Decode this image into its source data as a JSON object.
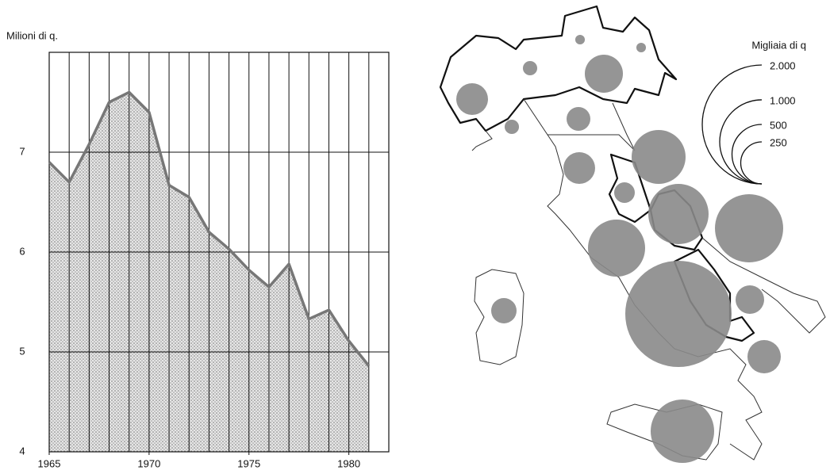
{
  "chart_data": [
    {
      "type": "area",
      "y_label": "Milioni di q.",
      "x": [
        1965,
        1966,
        1967,
        1968,
        1969,
        1970,
        1971,
        1972,
        1973,
        1974,
        1975,
        1976,
        1977,
        1978,
        1979,
        1980,
        1981
      ],
      "values": [
        6.9,
        6.7,
        7.08,
        7.5,
        7.6,
        7.4,
        6.67,
        6.55,
        6.2,
        6.03,
        5.82,
        5.65,
        5.88,
        5.33,
        5.42,
        5.11,
        4.86
      ],
      "color": "#777777",
      "xlim": [
        1965,
        1982
      ],
      "xticks": [
        1965,
        1970,
        1975,
        1980
      ],
      "ylim": [
        4,
        8
      ],
      "yticks": [
        4,
        5,
        6,
        7
      ],
      "grid": true
    },
    {
      "type": "bubble_map",
      "size_legend_title": "Migliaia di q",
      "size_ticks": [
        {
          "value": 2000,
          "label": "2.000"
        },
        {
          "value": 1000,
          "label": "1.000"
        },
        500,
        250
      ],
      "values": [
        142,
        29,
        13,
        13,
        205,
        29,
        80,
        142,
        60,
        411,
        513,
        657,
        461,
        1596,
        115,
        157,
        569,
        91
      ],
      "color": "#8a8a8a"
    }
  ]
}
